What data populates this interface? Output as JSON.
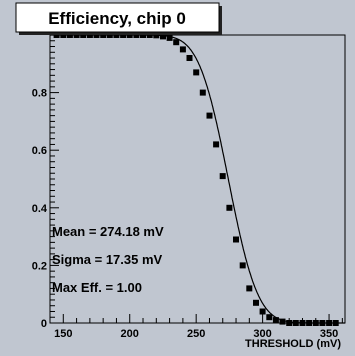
{
  "chart_data": {
    "type": "scatter",
    "title": "Efficiency, chip 0",
    "xlabel": "THRESHOLD (mV)",
    "ylabel": "",
    "xlim": [
      140,
      362
    ],
    "ylim": [
      0,
      1.0
    ],
    "x_ticks": [
      150,
      200,
      250,
      300,
      350
    ],
    "x_tick_labels": [
      "150",
      "200",
      "250",
      "300",
      "350"
    ],
    "y_ticks": [
      0,
      0.2,
      0.4,
      0.6,
      0.8
    ],
    "y_tick_labels": [
      "0",
      "0.2",
      "0.4",
      "0.6",
      "0.8"
    ],
    "fit": {
      "type": "erfc",
      "mean": 274.18,
      "sigma": 17.35,
      "max": 1.0
    },
    "series": [
      {
        "x": [
          145,
          150,
          155,
          160,
          165,
          170,
          175,
          180,
          185,
          190,
          195,
          200,
          205,
          210,
          215,
          220,
          225,
          230,
          235,
          240,
          245,
          250,
          255,
          260,
          265,
          270,
          275,
          280,
          285,
          290,
          295,
          300,
          305,
          310,
          315,
          320,
          325,
          330,
          335,
          340,
          345,
          350,
          355
        ],
        "y": [
          1.0,
          1.0,
          1.0,
          1.0,
          1.0,
          1.0,
          1.0,
          1.0,
          1.0,
          1.0,
          1.0,
          1.0,
          1.0,
          1.0,
          1.0,
          0.999,
          0.995,
          0.99,
          0.975,
          0.95,
          0.92,
          0.87,
          0.8,
          0.72,
          0.62,
          0.51,
          0.4,
          0.29,
          0.2,
          0.12,
          0.07,
          0.04,
          0.02,
          0.01,
          0.005,
          0.0,
          0.0,
          0.0,
          0.0,
          0.0,
          0.0,
          0.0,
          0.0
        ]
      }
    ],
    "stats": {
      "mean": "Mean = 274.18 mV",
      "sigma": "Sigma = 17.35 mV",
      "max_eff": "Max Eff. = 1.00"
    },
    "colors": {
      "frame_bg": "#c0c6d0",
      "plot_bg": "#c0c6d0",
      "title_bg": "#ffffff",
      "marker": "#000000"
    }
  }
}
